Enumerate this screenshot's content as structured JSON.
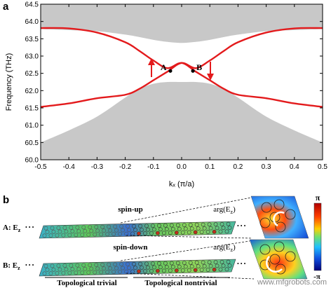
{
  "panel_a": {
    "label": "a",
    "xlabel": "kₓ (π/a)",
    "ylabel": "Frequency (THz)",
    "point_a_label": "A",
    "point_b_label": "B",
    "bulk_color": "#c8c8c8",
    "curve_color": "#e31a1c",
    "arrow_color": "#e31a1c"
  },
  "chart_data": {
    "type": "line",
    "xlim": [
      -0.5,
      0.5
    ],
    "ylim": [
      60.0,
      64.5
    ],
    "xticks": [
      -0.5,
      -0.4,
      -0.3,
      -0.2,
      -0.1,
      0.0,
      0.1,
      0.2,
      0.3,
      0.4,
      0.5
    ],
    "yticks": [
      60.0,
      60.5,
      61.0,
      61.5,
      62.0,
      62.5,
      63.0,
      63.5,
      64.0,
      64.5
    ],
    "xtick_labels": [
      "-0.5",
      "-0.4",
      "-0.3",
      "-0.2",
      "-0.1",
      "0.0",
      "0.1",
      "0.2",
      "0.3",
      "0.4",
      "0.5"
    ],
    "ytick_labels": [
      "60.0",
      "60.5",
      "61.0",
      "61.5",
      "62.0",
      "62.5",
      "63.0",
      "63.5",
      "64.0",
      "64.5"
    ],
    "bulk_upper_edge": {
      "x": [
        -0.5,
        -0.4,
        -0.3,
        -0.2,
        -0.15,
        -0.1,
        -0.05,
        0.0,
        0.05,
        0.1,
        0.15,
        0.2,
        0.3,
        0.4,
        0.5
      ],
      "y": [
        63.78,
        63.75,
        63.72,
        63.62,
        63.55,
        63.47,
        63.41,
        63.38,
        63.41,
        63.47,
        63.55,
        63.62,
        63.72,
        63.75,
        63.78
      ]
    },
    "bulk_lower_edge": {
      "x": [
        -0.5,
        -0.4,
        -0.3,
        -0.2,
        -0.15,
        -0.1,
        -0.05,
        0.0,
        0.05,
        0.1,
        0.15,
        0.2,
        0.3,
        0.4,
        0.5
      ],
      "y": [
        60.5,
        60.85,
        61.25,
        61.8,
        62.05,
        62.2,
        62.25,
        62.25,
        62.25,
        62.2,
        62.05,
        61.8,
        61.25,
        60.85,
        60.5
      ]
    },
    "series": [
      {
        "x": [
          -0.5,
          -0.4,
          -0.3,
          -0.2,
          -0.15,
          -0.1,
          -0.05,
          0.0,
          0.05,
          0.1,
          0.15,
          0.2,
          0.3,
          0.4,
          0.5
        ],
        "y": [
          63.81,
          63.8,
          63.68,
          63.4,
          63.15,
          62.87,
          62.65,
          62.8,
          62.55,
          62.3,
          62.05,
          61.88,
          61.78,
          61.63,
          61.53
        ]
      },
      {
        "x": [
          -0.5,
          -0.4,
          -0.3,
          -0.2,
          -0.15,
          -0.1,
          -0.05,
          0.0,
          0.05,
          0.1,
          0.15,
          0.2,
          0.3,
          0.4,
          0.5
        ],
        "y": [
          61.53,
          61.63,
          61.78,
          61.88,
          62.05,
          62.3,
          62.55,
          62.8,
          62.65,
          62.87,
          63.15,
          63.4,
          63.68,
          63.8,
          63.81
        ]
      }
    ],
    "points": [
      {
        "label": "A",
        "x": -0.04,
        "y": 62.57
      },
      {
        "label": "B",
        "x": 0.04,
        "y": 62.57
      }
    ]
  },
  "panel_b": {
    "label": "b",
    "row_a_label": "A: E",
    "row_a_sub": "z",
    "row_b_label": "B: E",
    "row_b_sub": "z",
    "row_a_spin": "spin-up",
    "row_b_spin": "spin-down",
    "row_a_arg": "arg(E",
    "row_a_arg_sub": "z",
    "row_a_arg_close": ")",
    "row_b_arg": "arg(E",
    "row_b_arg_sub": "z",
    "row_b_arg_close": ")",
    "region_trivial": "Topological trivial",
    "region_nontrivial": "Topological nontrivial",
    "colorbar_top": "π",
    "colorbar_bottom": "-π",
    "dots": "• • •"
  },
  "watermark": "www.mfgrobots.com"
}
